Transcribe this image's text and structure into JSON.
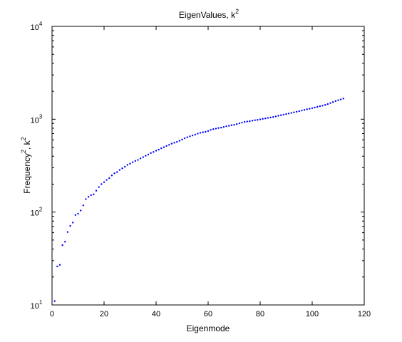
{
  "chart_data": {
    "type": "scatter",
    "title": "EigenValues, k",
    "title_superscript": "2",
    "xlabel": "Eigenmode",
    "ylabel": "Frequency",
    "ylabel_superscript_1": "2",
    "ylabel_middle": ", k",
    "ylabel_superscript_2": "2",
    "xlim": [
      0,
      120
    ],
    "ylim": [
      10,
      10000
    ],
    "yscale": "log",
    "grid": false,
    "box": true,
    "marker_color": "#0000ff",
    "marker": "dot",
    "x_ticks": [
      {
        "value": 0,
        "label": "0"
      },
      {
        "value": 20,
        "label": "20"
      },
      {
        "value": 40,
        "label": "40"
      },
      {
        "value": 60,
        "label": "60"
      },
      {
        "value": 80,
        "label": "80"
      },
      {
        "value": 100,
        "label": "100"
      },
      {
        "value": 120,
        "label": "120"
      }
    ],
    "y_ticks": [
      {
        "value": 10,
        "base": "10",
        "exp": "1"
      },
      {
        "value": 100,
        "base": "10",
        "exp": "2"
      },
      {
        "value": 1000,
        "base": "10",
        "exp": "3"
      },
      {
        "value": 10000,
        "base": "10",
        "exp": "4"
      }
    ],
    "series": [
      {
        "x": [
          1,
          2,
          3,
          4,
          5,
          6,
          7,
          8,
          9,
          10,
          11,
          12,
          13,
          14,
          15,
          16,
          17,
          18,
          19,
          20,
          21,
          22,
          23,
          24,
          25,
          26,
          27,
          28,
          29,
          30,
          31,
          32,
          33,
          34,
          35,
          36,
          37,
          38,
          39,
          40,
          41,
          42,
          43,
          44,
          45,
          46,
          47,
          48,
          49,
          50,
          51,
          52,
          53,
          54,
          55,
          56,
          57,
          58,
          59,
          60,
          61,
          62,
          63,
          64,
          65,
          66,
          67,
          68,
          69,
          70,
          71,
          72,
          73,
          74,
          75,
          76,
          77,
          78,
          79,
          80,
          81,
          82,
          83,
          84,
          85,
          86,
          87,
          88,
          89,
          90,
          91,
          92,
          93,
          94,
          95,
          96,
          97,
          98,
          99,
          100,
          101,
          102,
          103,
          104,
          105,
          106,
          107,
          108,
          109,
          110,
          111,
          112
        ],
        "y": [
          11,
          26,
          27,
          44,
          48,
          61,
          71,
          77,
          93,
          96,
          104,
          118,
          138,
          146,
          152,
          155,
          170,
          186,
          200,
          210,
          222,
          232,
          248,
          262,
          270,
          284,
          296,
          308,
          322,
          332,
          344,
          356,
          364,
          378,
          390,
          404,
          416,
          432,
          444,
          458,
          470,
          486,
          500,
          516,
          530,
          546,
          558,
          570,
          586,
          604,
          624,
          640,
          654,
          668,
          682,
          700,
          714,
          724,
          732,
          746,
          768,
          782,
          792,
          804,
          812,
          826,
          840,
          850,
          862,
          870,
          886,
          904,
          920,
          936,
          944,
          952,
          964,
          976,
          984,
          996,
          1008,
          1020,
          1032,
          1044,
          1056,
          1072,
          1090,
          1106,
          1120,
          1136,
          1152,
          1170,
          1186,
          1204,
          1220,
          1240,
          1260,
          1280,
          1296,
          1316,
          1336,
          1358,
          1380,
          1400,
          1426,
          1456,
          1492,
          1530,
          1568,
          1600,
          1632,
          1668
        ]
      }
    ]
  }
}
